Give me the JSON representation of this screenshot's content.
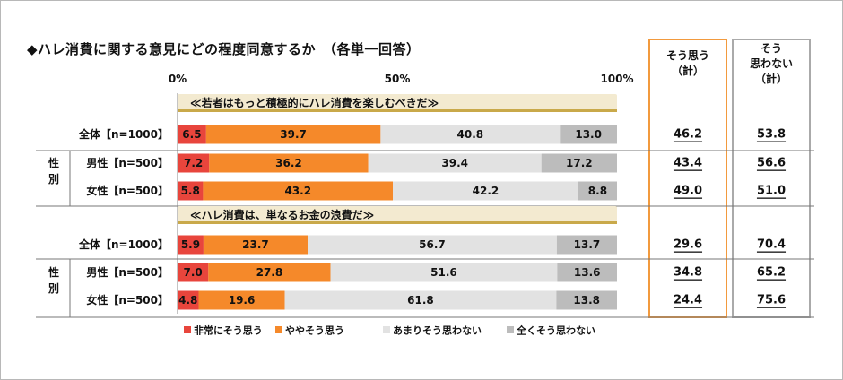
{
  "title": "◆ハレ消費に関する意見にどの程度同意するか　（各単一回答）",
  "summary_headers": {
    "agree": [
      "そう思う",
      "（計）"
    ],
    "disagree": [
      "そう",
      "思わない",
      "（計）"
    ]
  },
  "colors": {
    "very_agree": "#e8453c",
    "somewhat_agree": "#f5892a",
    "not_much": "#e2e2e2",
    "not_at_all": "#bcbcbc",
    "agree_box": "#f29a3e",
    "disagree_box": "#aaaaaa",
    "banner": "#f3ead0"
  },
  "chart_data": {
    "type": "bar",
    "orientation": "horizontal",
    "stacked": true,
    "percent_axis": {
      "ticks": [
        "0%",
        "50%",
        "100%"
      ],
      "range": [
        0,
        100
      ]
    },
    "legend_position": "bottom",
    "series": [
      {
        "name": "非常にそう思う",
        "color_key": "very_agree"
      },
      {
        "name": "ややそう思う",
        "color_key": "somewhat_agree"
      },
      {
        "name": "あまりそう思わない",
        "color_key": "not_much"
      },
      {
        "name": "全くそう思わない",
        "color_key": "not_at_all"
      }
    ],
    "groups": [
      {
        "statement": "≪若者はもっと積極的にハレ消費を楽しむべきだ≫",
        "side_label": [
          "性",
          "別"
        ],
        "rows": [
          {
            "label": "全体【n=1000】",
            "values": [
              6.5,
              39.7,
              40.8,
              13.0
            ],
            "labels": [
              "6.5",
              "39.7",
              "40.8",
              "13.0"
            ],
            "agree_total": "46.2",
            "disagree_total": "53.8"
          },
          {
            "label": "男性【n=500】",
            "values": [
              7.2,
              36.2,
              39.4,
              17.2
            ],
            "labels": [
              "7.2",
              "36.2",
              "39.4",
              "17.2"
            ],
            "agree_total": "43.4",
            "disagree_total": "56.6"
          },
          {
            "label": "女性【n=500】",
            "values": [
              5.8,
              43.2,
              42.2,
              8.8
            ],
            "labels": [
              "5.8",
              "43.2",
              "42.2",
              "8.8"
            ],
            "agree_total": "49.0",
            "disagree_total": "51.0"
          }
        ]
      },
      {
        "statement": "≪ハレ消費は、単なるお金の浪費だ≫",
        "side_label": [
          "性",
          "別"
        ],
        "rows": [
          {
            "label": "全体【n=1000】",
            "values": [
              5.9,
              23.7,
              56.7,
              13.7
            ],
            "labels": [
              "5.9",
              "23.7",
              "56.7",
              "13.7"
            ],
            "agree_total": "29.6",
            "disagree_total": "70.4"
          },
          {
            "label": "男性【n=500】",
            "values": [
              7.0,
              27.8,
              51.6,
              13.6
            ],
            "labels": [
              "7.0",
              "27.8",
              "51.6",
              "13.6"
            ],
            "agree_total": "34.8",
            "disagree_total": "65.2"
          },
          {
            "label": "女性【n=500】",
            "values": [
              4.8,
              19.6,
              61.8,
              13.8
            ],
            "labels": [
              "4.8",
              "19.6",
              "61.8",
              "13.8"
            ],
            "agree_total": "24.4",
            "disagree_total": "75.6"
          }
        ]
      }
    ]
  }
}
